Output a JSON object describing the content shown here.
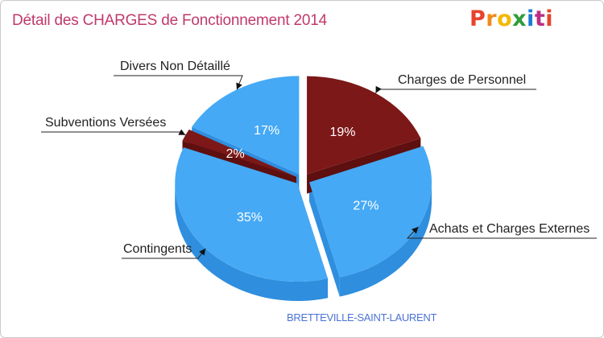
{
  "title": "Détail des CHARGES de Fonctionnement 2014",
  "logo": {
    "text": "Proxiti"
  },
  "footer": "BRETTEVILLE-SAINT-LAURENT",
  "colors": {
    "blue": "#45a9f5",
    "blue_side": "#2f8ede",
    "red": "#7d1818",
    "red_side": "#5e0f0f",
    "title": "#c0396b"
  },
  "chart_data": {
    "type": "pie",
    "title": "Détail des CHARGES de Fonctionnement 2014",
    "slices": [
      {
        "label": "Charges de Personnel",
        "value": 19,
        "pct_label": "19%",
        "color": "#7d1818"
      },
      {
        "label": "Achats et Charges Externes",
        "value": 27,
        "pct_label": "27%",
        "color": "#45a9f5"
      },
      {
        "label": "Contingents",
        "value": 35,
        "pct_label": "35%",
        "color": "#45a9f5"
      },
      {
        "label": "Subventions Versées",
        "value": 2,
        "pct_label": "2%",
        "color": "#7d1818"
      },
      {
        "label": "Divers Non Détaillé",
        "value": 17,
        "pct_label": "17%",
        "color": "#45a9f5"
      }
    ]
  }
}
